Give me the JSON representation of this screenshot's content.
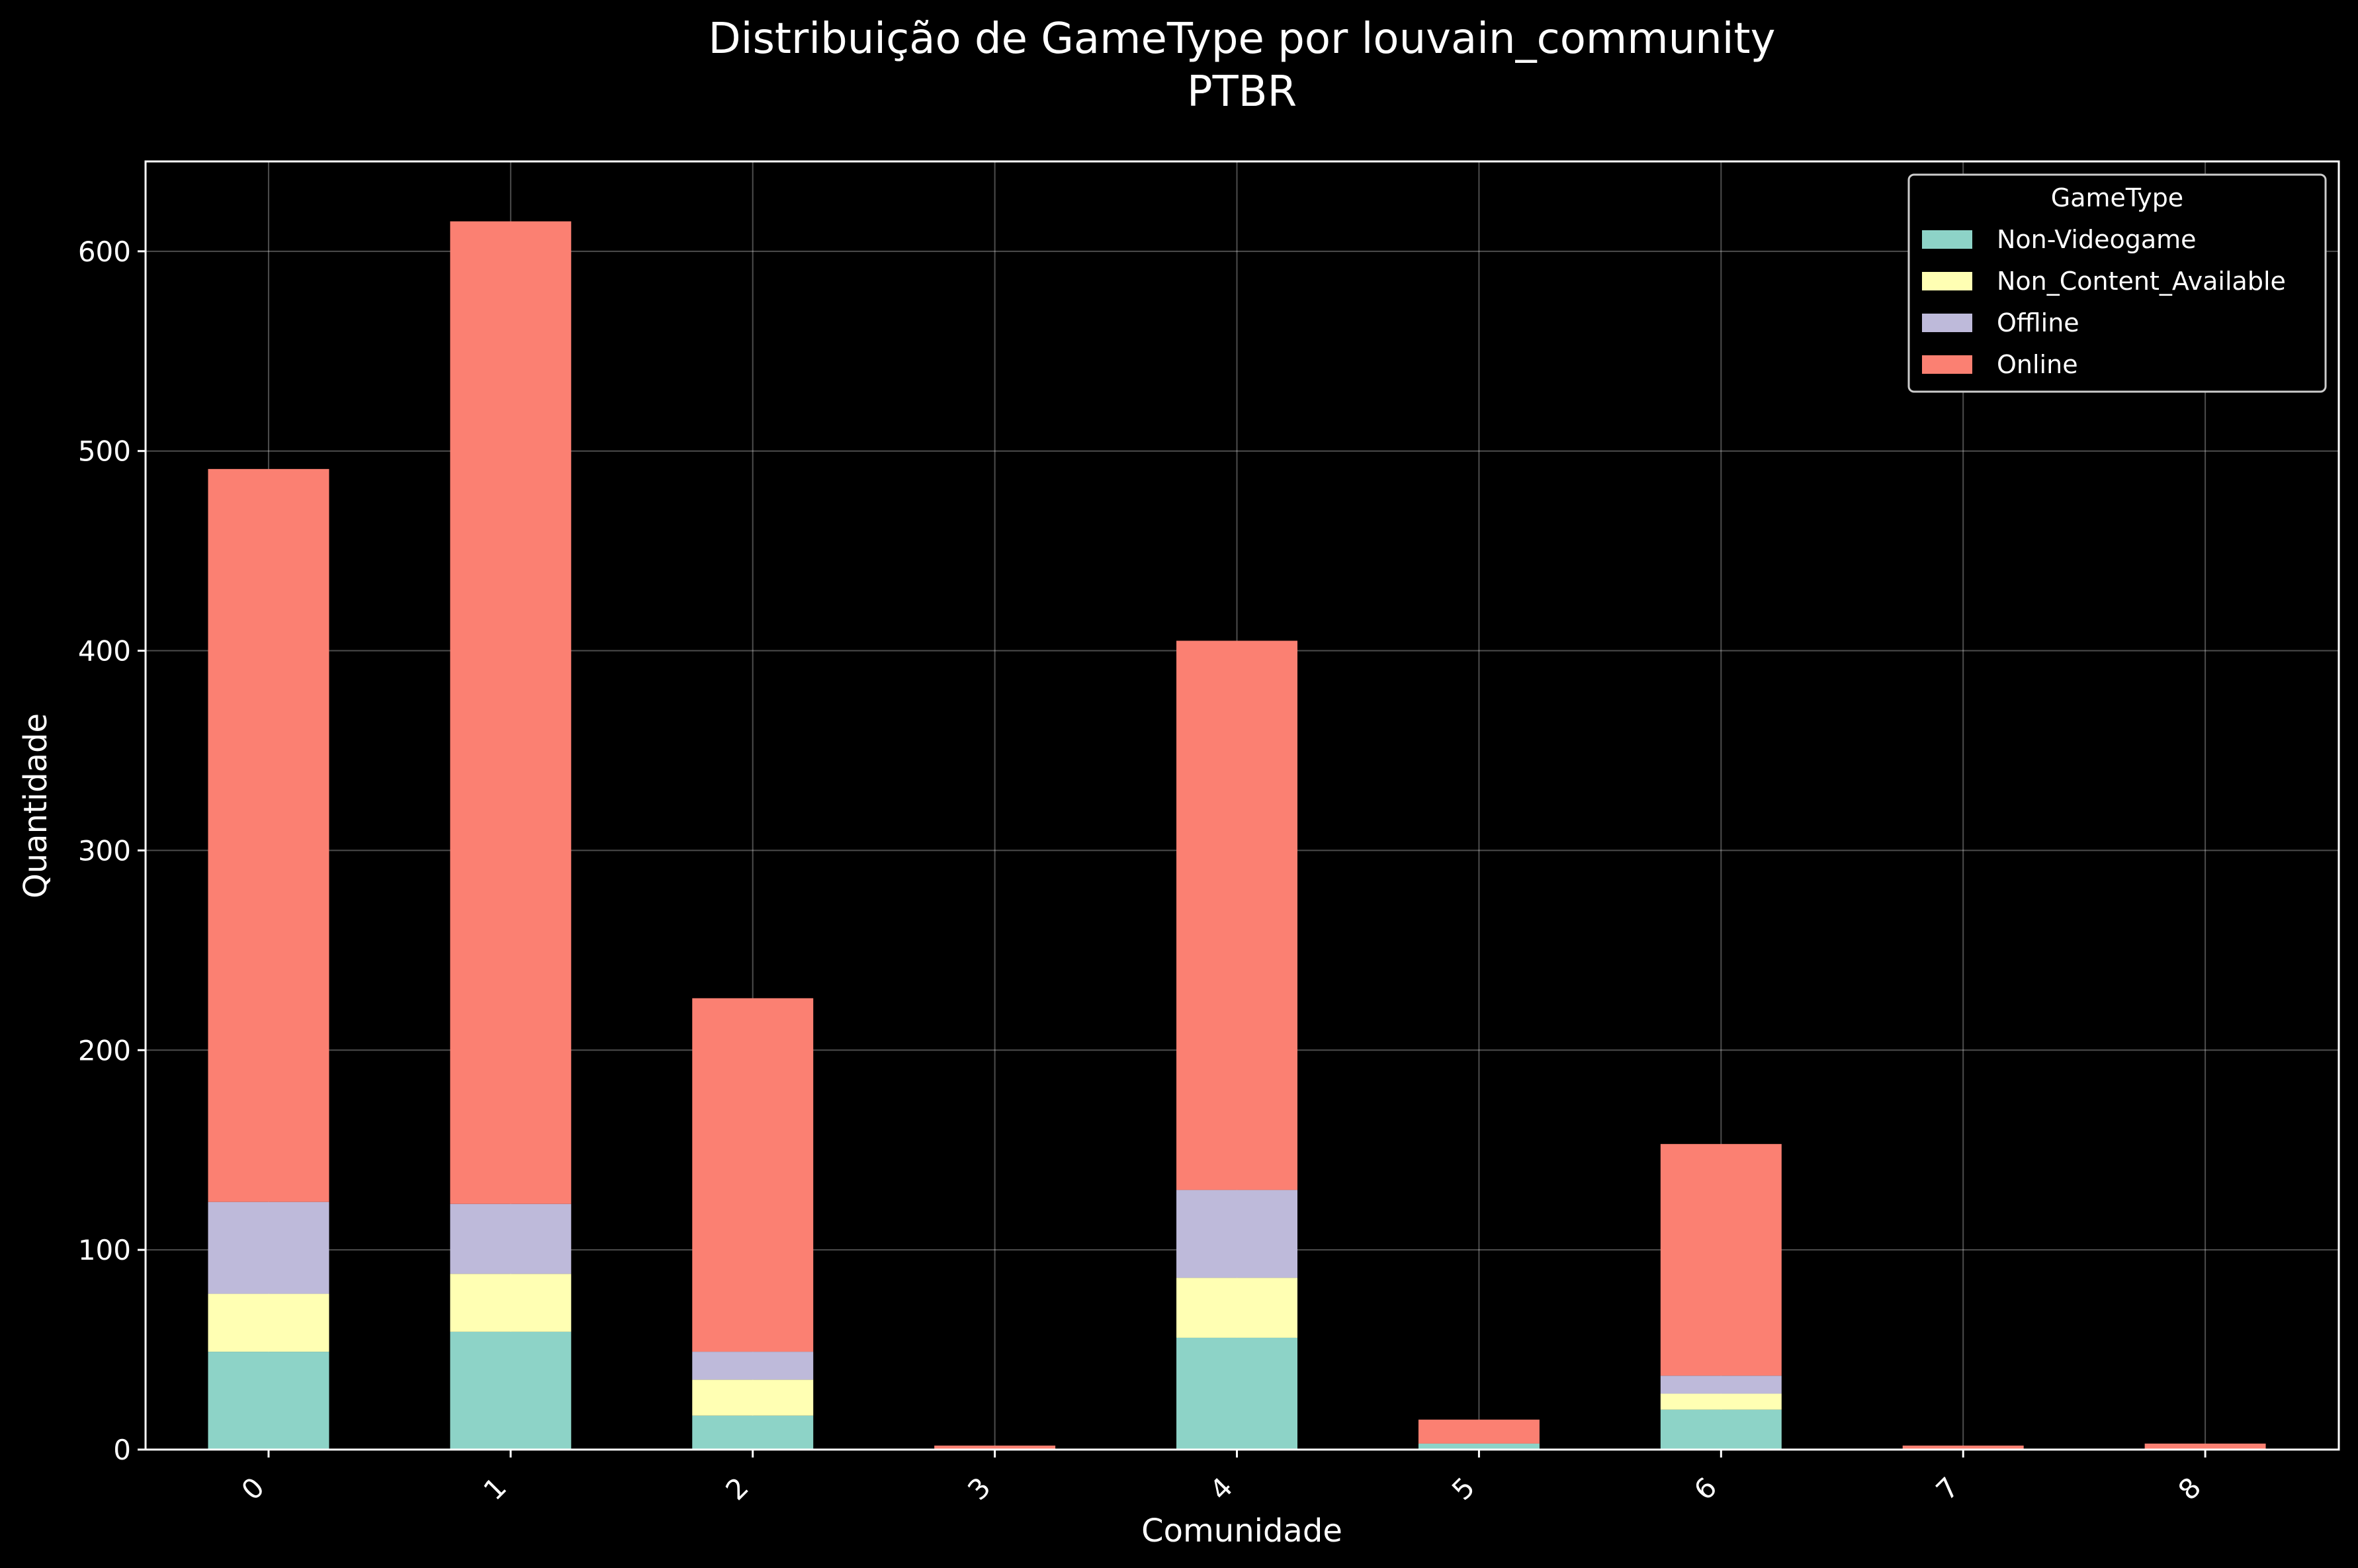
{
  "chart_data": {
    "type": "bar",
    "stacked": true,
    "title": "Distribuição de GameType por louvain_community",
    "subtitle": "PTBR",
    "xlabel": "Comunidade",
    "ylabel": "Quantidade",
    "categories": [
      "0",
      "1",
      "2",
      "3",
      "4",
      "5",
      "6",
      "7",
      "8"
    ],
    "ylim": [
      0,
      645
    ],
    "yticks": [
      0,
      100,
      200,
      300,
      400,
      500,
      600
    ],
    "grid": true,
    "legend": {
      "title": "GameType",
      "position": "top-right"
    },
    "series": [
      {
        "name": "Non-Videogame",
        "color": "#8dd3c7",
        "values": [
          49,
          59,
          17,
          0,
          56,
          3,
          20,
          0,
          0
        ]
      },
      {
        "name": "Non_Content_Available",
        "color": "#ffffb3",
        "values": [
          29,
          29,
          18,
          0,
          30,
          0,
          8,
          0,
          0
        ]
      },
      {
        "name": "Offline",
        "color": "#bebada",
        "values": [
          46,
          35,
          14,
          0,
          44,
          0,
          9,
          0,
          0
        ]
      },
      {
        "name": "Online",
        "color": "#fb8072",
        "values": [
          367,
          492,
          177,
          2,
          275,
          12,
          116,
          2,
          3
        ]
      }
    ]
  }
}
